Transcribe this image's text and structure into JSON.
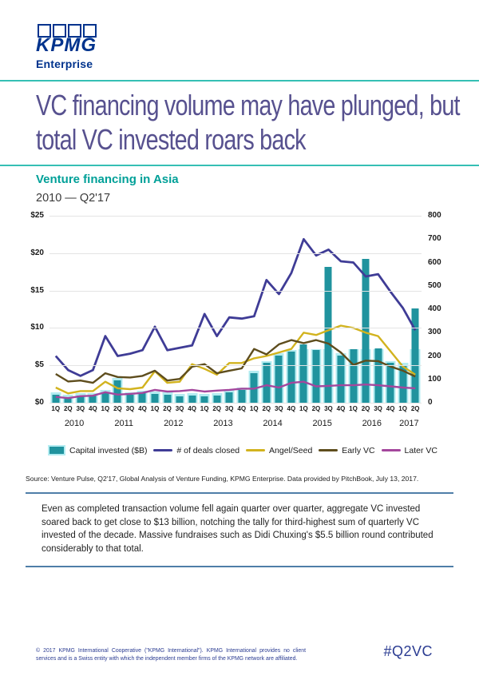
{
  "logo": {
    "brand": "KPMG",
    "sub": "Enterprise"
  },
  "title": {
    "line1": "VC financing volume may have plunged, but",
    "line2": "total VC invested roars back"
  },
  "chart_header": {
    "title": "Venture financing in Asia",
    "subtitle": "2010 — Q2'17"
  },
  "chart_data": {
    "type": "bar+line",
    "x": [
      "1Q",
      "2Q",
      "3Q",
      "4Q",
      "1Q",
      "2Q",
      "3Q",
      "4Q",
      "1Q",
      "2Q",
      "3Q",
      "4Q",
      "1Q",
      "2Q",
      "3Q",
      "4Q",
      "1Q",
      "2Q",
      "3Q",
      "4Q",
      "1Q",
      "2Q",
      "3Q",
      "4Q",
      "1Q",
      "2Q",
      "3Q",
      "4Q",
      "1Q",
      "2Q"
    ],
    "years": [
      {
        "label": "2010",
        "quarters": 4
      },
      {
        "label": "2011",
        "quarters": 4
      },
      {
        "label": "2012",
        "quarters": 4
      },
      {
        "label": "2013",
        "quarters": 4
      },
      {
        "label": "2014",
        "quarters": 4
      },
      {
        "label": "2015",
        "quarters": 4
      },
      {
        "label": "2016",
        "quarters": 4
      },
      {
        "label": "2017",
        "quarters": 2
      }
    ],
    "left_axis": {
      "labels": [
        "$25",
        "$20",
        "$15",
        "$10",
        "$5",
        "$0"
      ],
      "min": 0,
      "max": 25
    },
    "right_axis": {
      "labels": [
        "800",
        "700",
        "600",
        "500",
        "400",
        "300",
        "200",
        "100",
        "0"
      ],
      "min": 0,
      "max": 800
    },
    "grid": true,
    "legend_position": "bottom",
    "series": [
      {
        "name": "Capital invested ($B)",
        "type": "bar",
        "axis": "left",
        "color": "#20939e",
        "halo_color": "#b3ecf1",
        "values": [
          1.1,
          0.8,
          1.0,
          1.0,
          1.4,
          3.0,
          1.1,
          1.3,
          1.2,
          1.1,
          0.9,
          1.0,
          0.9,
          1.0,
          1.4,
          1.7,
          4.0,
          5.3,
          6.3,
          6.8,
          7.8,
          7.0,
          18.2,
          6.3,
          7.2,
          19.2,
          7.3,
          5.3,
          5.0,
          12.6
        ]
      },
      {
        "name": "# of deals closed",
        "type": "line",
        "axis": "right",
        "color": "#3f3c96",
        "width": 2.8,
        "values": [
          200,
          140,
          115,
          140,
          285,
          200,
          210,
          225,
          325,
          225,
          235,
          245,
          380,
          285,
          365,
          360,
          370,
          525,
          465,
          555,
          700,
          630,
          655,
          605,
          600,
          540,
          550,
          475,
          405,
          310
        ]
      },
      {
        "name": "Angel/Seed",
        "type": "line",
        "axis": "right",
        "color": "#d2b31e",
        "width": 2.4,
        "values": [
          65,
          40,
          50,
          50,
          90,
          62,
          58,
          65,
          135,
          85,
          90,
          165,
          145,
          120,
          170,
          170,
          190,
          200,
          215,
          230,
          300,
          290,
          310,
          330,
          320,
          300,
          285,
          220,
          155,
          120
        ]
      },
      {
        "name": "Early VC",
        "type": "line",
        "axis": "right",
        "color": "#5e4d1d",
        "width": 2.4,
        "values": [
          123,
          91,
          95,
          85,
          126,
          110,
          108,
          115,
          137,
          95,
          102,
          154,
          165,
          126,
          137,
          147,
          230,
          207,
          250,
          268,
          255,
          268,
          253,
          215,
          162,
          180,
          178,
          155,
          137,
          112
        ]
      },
      {
        "name": "Later VC",
        "type": "line",
        "axis": "right",
        "color": "#a4479d",
        "width": 2.4,
        "values": [
          25,
          20,
          28,
          30,
          45,
          35,
          38,
          42,
          55,
          48,
          50,
          55,
          48,
          52,
          55,
          60,
          60,
          75,
          65,
          85,
          90,
          70,
          72,
          75,
          75,
          78,
          75,
          70,
          65,
          62
        ]
      }
    ]
  },
  "source": "Source: Venture Pulse, Q2'17, Global Analysis of Venture Funding, KPMG Enterprise. Data provided by PitchBook, July 13, 2017.",
  "callout": {
    "text": "Even as completed transaction volume fell again quarter over quarter, aggregate VC invested soared back to get close to $13 billion, notching the tally for third-highest sum of quarterly VC invested of the decade. Massive fundraises such as Didi Chuxing's $5.5 billion round contributed considerably to that total."
  },
  "footer": {
    "copyright": "© 2017 KPMG International Cooperative (\"KPMG International\"). KPMG International provides no client services and is a Swiss entity with which the independent member firms of the KPMG network are affiliated.",
    "hashtag": "#Q2VC"
  }
}
